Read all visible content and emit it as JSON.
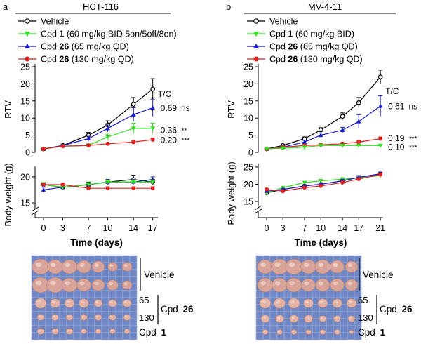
{
  "figure": {
    "panels": [
      {
        "letter": "a",
        "cell_line": "HCT-116",
        "legend": [
          {
            "marker": "open-circle",
            "color": "#000000",
            "parts": [
              [
                "Vehicle",
                false
              ]
            ]
          },
          {
            "marker": "down-triangle",
            "color": "#33dd22",
            "parts": [
              [
                "Cpd ",
                false
              ],
              [
                "1",
                true
              ],
              [
                " (60 mg/kg BID 5on/5off/8on)",
                false
              ]
            ]
          },
          {
            "marker": "up-triangle",
            "color": "#1a1acc",
            "parts": [
              [
                "Cpd ",
                false
              ],
              [
                "26",
                true
              ],
              [
                " (65 mg/kg QD)",
                false
              ]
            ]
          },
          {
            "marker": "filled-circle",
            "color": "#dd2222",
            "parts": [
              [
                "Cpd ",
                false
              ],
              [
                "26",
                true
              ],
              [
                " (130 mg/kg QD)",
                false
              ]
            ]
          }
        ],
        "tc_header": "T/C",
        "tc_labels": [
          {
            "value": "0.69",
            "sig": "ns",
            "color": "#1a1acc"
          },
          {
            "value": "0.36",
            "sig": "**",
            "color": "#33dd22"
          },
          {
            "value": "0.20",
            "sig": "***",
            "color": "#dd2222"
          }
        ],
        "rtv_chart": {
          "type": "line",
          "ylabel": "RTV",
          "ylim": [
            0,
            25
          ],
          "yticks": [
            0,
            5,
            10,
            15,
            20,
            25
          ],
          "x": [
            0,
            3,
            7,
            10,
            14,
            17
          ],
          "series": [
            {
              "color": "#000000",
              "marker": "open-circle",
              "values": [
                1.0,
                2.0,
                5.0,
                8.0,
                14.0,
                18.5
              ],
              "errors": [
                0.3,
                0.3,
                0.8,
                1.2,
                2.0,
                3.0
              ]
            },
            {
              "color": "#1a1acc",
              "marker": "up-triangle",
              "values": [
                1.0,
                2.0,
                4.0,
                7.0,
                11.0,
                13.0
              ],
              "errors": [
                0.3,
                0.3,
                0.7,
                1.0,
                2.0,
                2.5
              ]
            },
            {
              "color": "#33dd22",
              "marker": "down-triangle",
              "values": [
                1.0,
                1.8,
                2.0,
                4.5,
                7.0,
                7.0
              ],
              "errors": [
                0.2,
                0.3,
                0.5,
                0.8,
                1.5,
                1.5
              ]
            },
            {
              "color": "#dd2222",
              "marker": "filled-circle",
              "values": [
                1.0,
                1.8,
                2.0,
                2.5,
                3.0,
                3.7
              ],
              "errors": [
                0.2,
                0.2,
                0.3,
                0.3,
                0.4,
                0.5
              ]
            }
          ]
        },
        "bw_chart": {
          "type": "line",
          "ylabel": "Body weight (g)",
          "xlabel": "Time (days)",
          "ylim": [
            15,
            22
          ],
          "yticks": [
            15,
            20
          ],
          "xticks": [
            0,
            3,
            7,
            10,
            14,
            17
          ],
          "x": [
            0,
            3,
            7,
            10,
            14,
            17
          ],
          "series": [
            {
              "color": "#000000",
              "marker": "open-circle",
              "values": [
                18.5,
                18.0,
                18.5,
                19.0,
                19.5,
                19.0
              ],
              "errors": [
                0.4,
                0.4,
                0.5,
                0.5,
                0.8,
                0.5
              ]
            },
            {
              "color": "#1a1acc",
              "marker": "up-triangle",
              "values": [
                17.5,
                18.0,
                18.5,
                19.0,
                19.0,
                19.5
              ],
              "errors": [
                0.5,
                0.4,
                0.4,
                0.5,
                0.5,
                0.5
              ]
            },
            {
              "color": "#33dd22",
              "marker": "down-triangle",
              "values": [
                18.5,
                18.0,
                18.5,
                19.0,
                19.0,
                19.0
              ],
              "errors": [
                0.4,
                0.4,
                0.4,
                0.4,
                0.4,
                0.4
              ]
            },
            {
              "color": "#dd2222",
              "marker": "filled-circle",
              "values": [
                18.5,
                18.5,
                17.8,
                17.8,
                17.8,
                17.8
              ],
              "errors": [
                0.3,
                0.3,
                0.3,
                0.3,
                0.3,
                0.3
              ]
            }
          ]
        },
        "photo_labels": {
          "vehicle": "Vehicle",
          "dose_high": "65",
          "dose_low": "130",
          "cpd26_prefix": "Cpd ",
          "cpd26_bold": "26",
          "cpd1_prefix": "Cpd ",
          "cpd1_bold": "1"
        }
      },
      {
        "letter": "b",
        "cell_line": "MV-4-11",
        "legend": [
          {
            "marker": "open-circle",
            "color": "#000000",
            "parts": [
              [
                "Vehicle",
                false
              ]
            ]
          },
          {
            "marker": "down-triangle",
            "color": "#33dd22",
            "parts": [
              [
                "Cpd ",
                false
              ],
              [
                "1",
                true
              ],
              [
                " (60 mg/kg BID)",
                false
              ]
            ]
          },
          {
            "marker": "up-triangle",
            "color": "#1a1acc",
            "parts": [
              [
                "Cpd ",
                false
              ],
              [
                "26",
                true
              ],
              [
                " (65 mg/kg QD)",
                false
              ]
            ]
          },
          {
            "marker": "filled-circle",
            "color": "#dd2222",
            "parts": [
              [
                "Cpd ",
                false
              ],
              [
                "26",
                true
              ],
              [
                " (130 mg/kg QD)",
                false
              ]
            ]
          }
        ],
        "tc_header": "T/C",
        "tc_labels": [
          {
            "value": "0.61",
            "sig": "ns",
            "color": "#1a1acc"
          },
          {
            "value": "0.19",
            "sig": "***",
            "color": "#dd2222"
          },
          {
            "value": "0.10",
            "sig": "***",
            "color": "#33dd22"
          }
        ],
        "rtv_chart": {
          "type": "line",
          "ylabel": "RTV",
          "ylim": [
            0,
            25
          ],
          "yticks": [
            0,
            5,
            10,
            15,
            20,
            25
          ],
          "x": [
            0,
            3,
            7,
            10,
            14,
            17,
            21
          ],
          "series": [
            {
              "color": "#000000",
              "marker": "open-circle",
              "values": [
                1.0,
                2.0,
                4.0,
                6.5,
                10.5,
                14.5,
                22.0
              ],
              "errors": [
                0.2,
                0.3,
                0.5,
                0.7,
                1.0,
                1.5,
                2.0
              ]
            },
            {
              "color": "#1a1acc",
              "marker": "up-triangle",
              "values": [
                1.0,
                1.5,
                3.0,
                5.0,
                6.5,
                9.0,
                13.5
              ],
              "errors": [
                0.2,
                0.3,
                0.5,
                0.6,
                0.8,
                2.0,
                3.0
              ]
            },
            {
              "color": "#dd2222",
              "marker": "filled-circle",
              "values": [
                1.0,
                1.5,
                2.0,
                2.2,
                2.5,
                3.0,
                4.0
              ],
              "errors": [
                0.2,
                0.2,
                0.3,
                0.3,
                0.3,
                0.4,
                0.5
              ]
            },
            {
              "color": "#33dd22",
              "marker": "down-triangle",
              "values": [
                1.0,
                1.2,
                1.5,
                2.0,
                2.0,
                2.0,
                2.0
              ],
              "errors": [
                0.2,
                0.2,
                0.2,
                0.2,
                0.2,
                0.2,
                0.2
              ]
            }
          ]
        },
        "bw_chart": {
          "type": "line",
          "ylabel": "Body weight (g)",
          "xlabel": "Time (days)",
          "ylim": [
            15,
            26
          ],
          "yticks": [
            15,
            20,
            25
          ],
          "xticks": [
            0,
            3,
            7,
            10,
            14,
            17,
            21
          ],
          "x": [
            0,
            3,
            7,
            10,
            14,
            17,
            21
          ],
          "series": [
            {
              "color": "#000000",
              "marker": "open-circle",
              "values": [
                17.5,
                18.5,
                19.5,
                20.0,
                21.0,
                22.0,
                23.0
              ],
              "errors": [
                0.3,
                0.3,
                0.3,
                0.4,
                0.4,
                0.5,
                0.5
              ]
            },
            {
              "color": "#33dd22",
              "marker": "down-triangle",
              "values": [
                17.5,
                19.0,
                20.5,
                21.0,
                21.5,
                21.8,
                22.5
              ],
              "errors": [
                0.3,
                0.3,
                0.3,
                0.4,
                0.4,
                0.4,
                0.4
              ]
            },
            {
              "color": "#1a1acc",
              "marker": "up-triangle",
              "values": [
                18.0,
                18.5,
                19.5,
                20.0,
                21.0,
                22.0,
                23.0
              ],
              "errors": [
                0.3,
                0.3,
                0.3,
                0.3,
                0.4,
                0.4,
                0.5
              ]
            },
            {
              "color": "#dd2222",
              "marker": "filled-circle",
              "values": [
                18.5,
                18.0,
                19.0,
                19.5,
                20.5,
                21.5,
                22.8
              ],
              "errors": [
                0.3,
                0.3,
                0.3,
                0.3,
                0.4,
                0.4,
                0.4
              ]
            }
          ]
        },
        "photo_labels": {
          "vehicle": "Vehicle",
          "dose_high": "65",
          "dose_low": "130",
          "cpd26_prefix": "Cpd ",
          "cpd26_bold": "26",
          "cpd1_prefix": "Cpd ",
          "cpd1_bold": "1"
        }
      }
    ]
  },
  "chart_data": [
    {
      "type": "line",
      "title": "HCT-116",
      "ylabel": "RTV",
      "x": [
        0,
        3,
        7,
        10,
        14,
        17
      ],
      "ylim": [
        0,
        25
      ],
      "series": [
        {
          "name": "Vehicle",
          "values": [
            1.0,
            2.0,
            5.0,
            8.0,
            14.0,
            18.5
          ]
        },
        {
          "name": "Cpd 1 (60 mg/kg BID 5on/5off/8on)",
          "values": [
            1.0,
            1.8,
            2.0,
            4.5,
            7.0,
            7.0
          ]
        },
        {
          "name": "Cpd 26 (65 mg/kg QD)",
          "values": [
            1.0,
            2.0,
            4.0,
            7.0,
            11.0,
            13.0
          ]
        },
        {
          "name": "Cpd 26 (130 mg/kg QD)",
          "values": [
            1.0,
            1.8,
            2.0,
            2.5,
            3.0,
            3.7
          ]
        }
      ]
    },
    {
      "type": "line",
      "title": "HCT-116",
      "ylabel": "Body weight (g)",
      "xlabel": "Time (days)",
      "x": [
        0,
        3,
        7,
        10,
        14,
        17
      ],
      "ylim": [
        15,
        22
      ],
      "series": [
        {
          "name": "Vehicle",
          "values": [
            18.5,
            18.0,
            18.5,
            19.0,
            19.5,
            19.0
          ]
        },
        {
          "name": "Cpd 1 (60 mg/kg BID 5on/5off/8on)",
          "values": [
            18.5,
            18.0,
            18.5,
            19.0,
            19.0,
            19.0
          ]
        },
        {
          "name": "Cpd 26 (65 mg/kg QD)",
          "values": [
            17.5,
            18.0,
            18.5,
            19.0,
            19.0,
            19.5
          ]
        },
        {
          "name": "Cpd 26 (130 mg/kg QD)",
          "values": [
            18.5,
            18.5,
            17.8,
            17.8,
            17.8,
            17.8
          ]
        }
      ]
    },
    {
      "type": "line",
      "title": "MV-4-11",
      "ylabel": "RTV",
      "x": [
        0,
        3,
        7,
        10,
        14,
        17,
        21
      ],
      "ylim": [
        0,
        25
      ],
      "series": [
        {
          "name": "Vehicle",
          "values": [
            1.0,
            2.0,
            4.0,
            6.5,
            10.5,
            14.5,
            22.0
          ]
        },
        {
          "name": "Cpd 1 (60 mg/kg BID)",
          "values": [
            1.0,
            1.2,
            1.5,
            2.0,
            2.0,
            2.0,
            2.0
          ]
        },
        {
          "name": "Cpd 26 (65 mg/kg QD)",
          "values": [
            1.0,
            1.5,
            3.0,
            5.0,
            6.5,
            9.0,
            13.5
          ]
        },
        {
          "name": "Cpd 26 (130 mg/kg QD)",
          "values": [
            1.0,
            1.5,
            2.0,
            2.2,
            2.5,
            3.0,
            4.0
          ]
        }
      ]
    },
    {
      "type": "line",
      "title": "MV-4-11",
      "ylabel": "Body weight (g)",
      "xlabel": "Time (days)",
      "x": [
        0,
        3,
        7,
        10,
        14,
        17,
        21
      ],
      "ylim": [
        15,
        26
      ],
      "series": [
        {
          "name": "Vehicle",
          "values": [
            17.5,
            18.5,
            19.5,
            20.0,
            21.0,
            22.0,
            23.0
          ]
        },
        {
          "name": "Cpd 1 (60 mg/kg BID)",
          "values": [
            17.5,
            19.0,
            20.5,
            21.0,
            21.5,
            21.8,
            22.5
          ]
        },
        {
          "name": "Cpd 26 (65 mg/kg QD)",
          "values": [
            18.0,
            18.5,
            19.5,
            20.0,
            21.0,
            22.0,
            23.0
          ]
        },
        {
          "name": "Cpd 26 (130 mg/kg QD)",
          "values": [
            18.5,
            18.0,
            19.0,
            19.5,
            20.5,
            21.5,
            22.8
          ]
        }
      ]
    }
  ]
}
